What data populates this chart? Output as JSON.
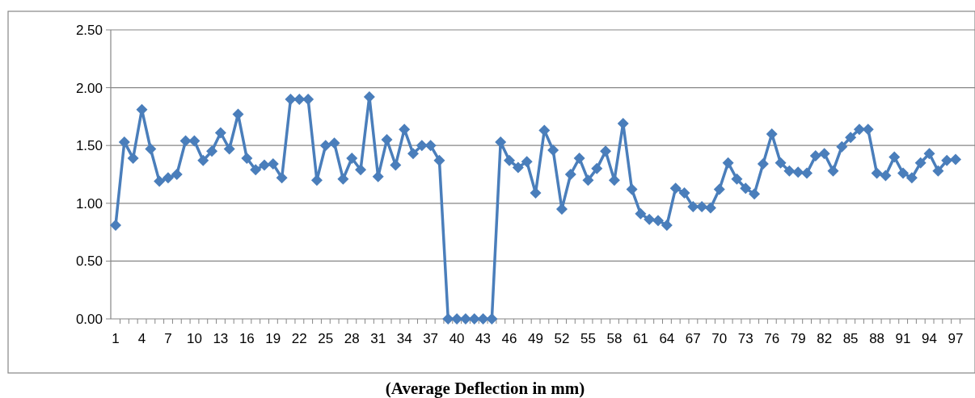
{
  "chart_data": {
    "type": "line",
    "xlabel": "(Average Deflection in mm)",
    "categories": [
      "1",
      null,
      null,
      "4",
      null,
      null,
      "7",
      null,
      null,
      "10",
      null,
      null,
      "13",
      null,
      null,
      "16",
      null,
      null,
      "19",
      null,
      null,
      "22",
      null,
      null,
      "25",
      null,
      null,
      "28",
      null,
      null,
      "31",
      null,
      null,
      "34",
      null,
      null,
      "37",
      null,
      null,
      "40",
      null,
      null,
      "43",
      null,
      null,
      "46",
      null,
      null,
      "49",
      null,
      null,
      "52",
      null,
      null,
      "55",
      null,
      null,
      "58",
      null,
      null,
      "61",
      null,
      null,
      "64",
      null,
      null,
      "67",
      null,
      null,
      "70",
      null,
      null,
      "73",
      null,
      null,
      "76",
      null,
      null,
      "79",
      null,
      null,
      "82",
      null,
      null,
      "85",
      null,
      null,
      "88",
      null,
      null,
      "91",
      null,
      null,
      "94",
      null,
      null,
      "97"
    ],
    "series": [
      {
        "color": "#4a7ebb",
        "values": [
          0.81,
          1.53,
          1.39,
          1.81,
          1.47,
          1.19,
          1.22,
          1.25,
          1.54,
          1.54,
          1.37,
          1.45,
          1.61,
          1.47,
          1.77,
          1.39,
          1.29,
          1.33,
          1.34,
          1.22,
          1.9,
          1.9,
          1.9,
          1.2,
          1.5,
          1.52,
          1.21,
          1.39,
          1.29,
          1.92,
          1.23,
          1.55,
          1.33,
          1.64,
          1.43,
          1.5,
          1.5,
          1.37,
          0,
          0,
          0,
          0,
          0,
          0,
          1.53,
          1.37,
          1.31,
          1.36,
          1.09,
          1.63,
          1.46,
          0.95,
          1.25,
          1.39,
          1.2,
          1.3,
          1.45,
          1.2,
          1.69,
          1.12,
          0.91,
          0.86,
          0.85,
          0.81,
          1.13,
          1.09,
          0.97,
          0.97,
          0.96,
          1.12,
          1.35,
          1.21,
          1.13,
          1.08,
          1.34,
          1.6,
          1.35,
          1.28,
          1.27,
          1.26,
          1.41,
          1.43,
          1.28,
          1.49,
          1.57,
          1.64,
          1.64,
          1.26,
          1.24,
          1.4,
          1.26,
          1.22,
          1.35,
          1.43,
          1.28,
          1.37,
          1.38
        ]
      }
    ],
    "ylim": [
      0,
      2.5
    ],
    "yticks": [
      {
        "value": 0,
        "label": "0.00"
      },
      {
        "value": 0.5,
        "label": "0.50"
      },
      {
        "value": 1,
        "label": "1.00"
      },
      {
        "value": 1.5,
        "label": "1.50"
      },
      {
        "value": 2,
        "label": "2.00"
      },
      {
        "value": 2.5,
        "label": "2.50"
      }
    ],
    "grid": "y",
    "marker": "diamond",
    "line_style": "solid"
  }
}
